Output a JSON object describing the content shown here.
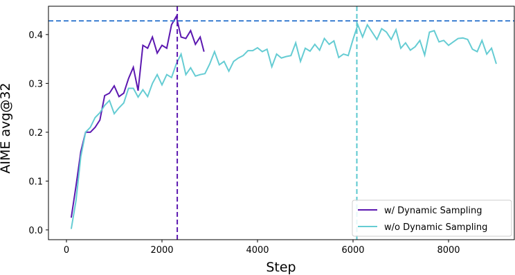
{
  "chart_data": {
    "type": "line",
    "x_label": "Step",
    "y_label": "AIME avg@32",
    "xlim": [
      -377,
      9377
    ],
    "ylim": [
      -0.02,
      0.458
    ],
    "xticks": [
      0,
      2000,
      4000,
      6000,
      8000
    ],
    "yticks": [
      {
        "value": 0,
        "label": "0.0"
      },
      0.1,
      0.2,
      0.3,
      0.4
    ],
    "legend": "lower right",
    "hlines": [
      {
        "value": 0.428,
        "color": "#3c7fd1"
      }
    ],
    "vlines": [
      {
        "value": 2320,
        "color": "#5b17b0"
      },
      {
        "value": 6080,
        "color": "#5bc8cf"
      }
    ],
    "series": [
      {
        "name": "w/ Dynamic Sampling",
        "color": "#5b17b0",
        "x": [
          100,
          200,
          300,
          400,
          500,
          600,
          700,
          800,
          900,
          1000,
          1100,
          1200,
          1300,
          1400,
          1500,
          1600,
          1700,
          1800,
          1900,
          2000,
          2100,
          2200,
          2300,
          2400,
          2500,
          2600,
          2700,
          2800,
          2880
        ],
        "values": [
          0.025,
          0.09,
          0.16,
          0.2,
          0.2,
          0.21,
          0.225,
          0.275,
          0.28,
          0.295,
          0.273,
          0.28,
          0.31,
          0.333,
          0.285,
          0.378,
          0.372,
          0.395,
          0.362,
          0.378,
          0.372,
          0.42,
          0.437,
          0.395,
          0.392,
          0.408,
          0.38,
          0.395,
          0.365
        ]
      },
      {
        "name": "w/o Dynamic Sampling",
        "color": "#65ccd3",
        "x": [
          100,
          200,
          300,
          400,
          500,
          600,
          700,
          800,
          900,
          1000,
          1100,
          1200,
          1300,
          1400,
          1500,
          1600,
          1700,
          1800,
          1900,
          2000,
          2100,
          2200,
          2300,
          2400,
          2500,
          2600,
          2700,
          2800,
          2900,
          3000,
          3100,
          3200,
          3300,
          3400,
          3500,
          3600,
          3700,
          3800,
          3900,
          4000,
          4100,
          4200,
          4300,
          4400,
          4500,
          4600,
          4700,
          4800,
          4900,
          5000,
          5100,
          5200,
          5300,
          5400,
          5500,
          5600,
          5700,
          5800,
          5900,
          6000,
          6100,
          6200,
          6300,
          6400,
          6500,
          6600,
          6700,
          6800,
          6900,
          7000,
          7100,
          7200,
          7300,
          7400,
          7500,
          7600,
          7700,
          7800,
          7900,
          8000,
          8100,
          8200,
          8300,
          8400,
          8500,
          8600,
          8700,
          8800,
          8900,
          9000
        ],
        "values": [
          0.002,
          0.06,
          0.15,
          0.2,
          0.21,
          0.23,
          0.24,
          0.255,
          0.265,
          0.238,
          0.25,
          0.26,
          0.29,
          0.29,
          0.272,
          0.287,
          0.273,
          0.3,
          0.318,
          0.297,
          0.318,
          0.312,
          0.34,
          0.36,
          0.318,
          0.332,
          0.315,
          0.318,
          0.32,
          0.34,
          0.365,
          0.338,
          0.345,
          0.325,
          0.345,
          0.352,
          0.357,
          0.367,
          0.367,
          0.373,
          0.365,
          0.37,
          0.334,
          0.36,
          0.352,
          0.355,
          0.357,
          0.383,
          0.345,
          0.372,
          0.366,
          0.38,
          0.368,
          0.392,
          0.38,
          0.387,
          0.353,
          0.36,
          0.357,
          0.39,
          0.42,
          0.395,
          0.42,
          0.405,
          0.39,
          0.412,
          0.405,
          0.39,
          0.41,
          0.372,
          0.383,
          0.368,
          0.375,
          0.388,
          0.358,
          0.405,
          0.408,
          0.385,
          0.388,
          0.378,
          0.385,
          0.392,
          0.393,
          0.39,
          0.37,
          0.365,
          0.388,
          0.36,
          0.372,
          0.34
        ]
      }
    ]
  }
}
